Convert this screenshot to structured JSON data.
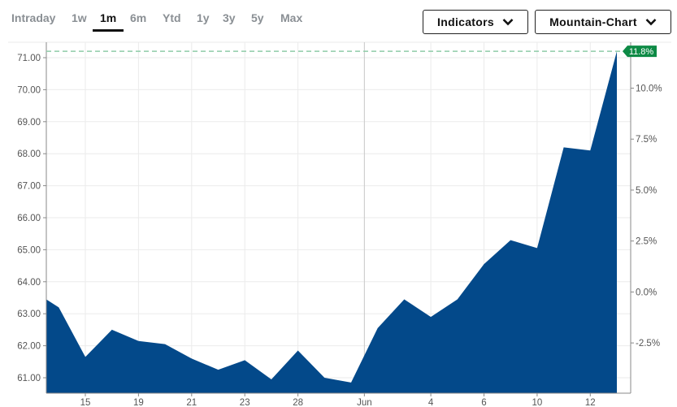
{
  "tabs": [
    {
      "label": "Intraday"
    },
    {
      "label": "1w"
    },
    {
      "label": "1m",
      "active": true
    },
    {
      "label": "6m"
    },
    {
      "label": "Ytd"
    },
    {
      "label": "1y"
    },
    {
      "label": "3y"
    },
    {
      "label": "5y"
    },
    {
      "label": "Max"
    }
  ],
  "buttons": {
    "indicators": "Indicators",
    "chart_type": "Mountain-Chart"
  },
  "colors": {
    "fill": "#03498a",
    "ref_line": "#8fcca8",
    "badge": "#0d8a45",
    "grid": "#ebebeb"
  },
  "chart_data": {
    "type": "area",
    "title": "",
    "x": [
      0.53,
      1,
      2,
      3,
      4,
      5,
      6,
      7,
      8,
      9,
      10,
      11,
      12,
      13,
      14,
      15,
      16,
      17,
      18,
      19,
      20,
      21,
      22
    ],
    "values": [
      63.45,
      63.2,
      61.65,
      62.5,
      62.15,
      62.05,
      61.6,
      61.25,
      61.55,
      60.95,
      61.85,
      61.0,
      60.85,
      62.55,
      63.45,
      62.9,
      63.45,
      64.55,
      65.3,
      65.05,
      68.2,
      68.1,
      71.2
    ],
    "x_ticks": [
      {
        "x": 2,
        "label": "15"
      },
      {
        "x": 4,
        "label": "19"
      },
      {
        "x": 6,
        "label": "21"
      },
      {
        "x": 8,
        "label": "23"
      },
      {
        "x": 10,
        "label": "28"
      },
      {
        "x": 12.5,
        "label": "Jun"
      },
      {
        "x": 15,
        "label": "4"
      },
      {
        "x": 17,
        "label": "6"
      },
      {
        "x": 19,
        "label": "10"
      },
      {
        "x": 21,
        "label": "12"
      }
    ],
    "y_ticks": [
      "71.00",
      "70.00",
      "69.00",
      "68.00",
      "67.00",
      "66.00",
      "65.00",
      "64.00",
      "63.00",
      "62.00",
      "61.00"
    ],
    "y2_ticks": [
      "10.0%",
      "7.5%",
      "5.0%",
      "2.5%",
      "0.0%",
      "-2.5%"
    ],
    "y2_values": [
      10,
      7.5,
      5,
      2.5,
      0,
      -2.5
    ],
    "baseline_price": 63.68,
    "current_change_label": "11.8%",
    "current_price": 71.2,
    "ylim": [
      60.5,
      71.5
    ],
    "xlim": [
      0.53,
      22
    ],
    "grid": true
  }
}
